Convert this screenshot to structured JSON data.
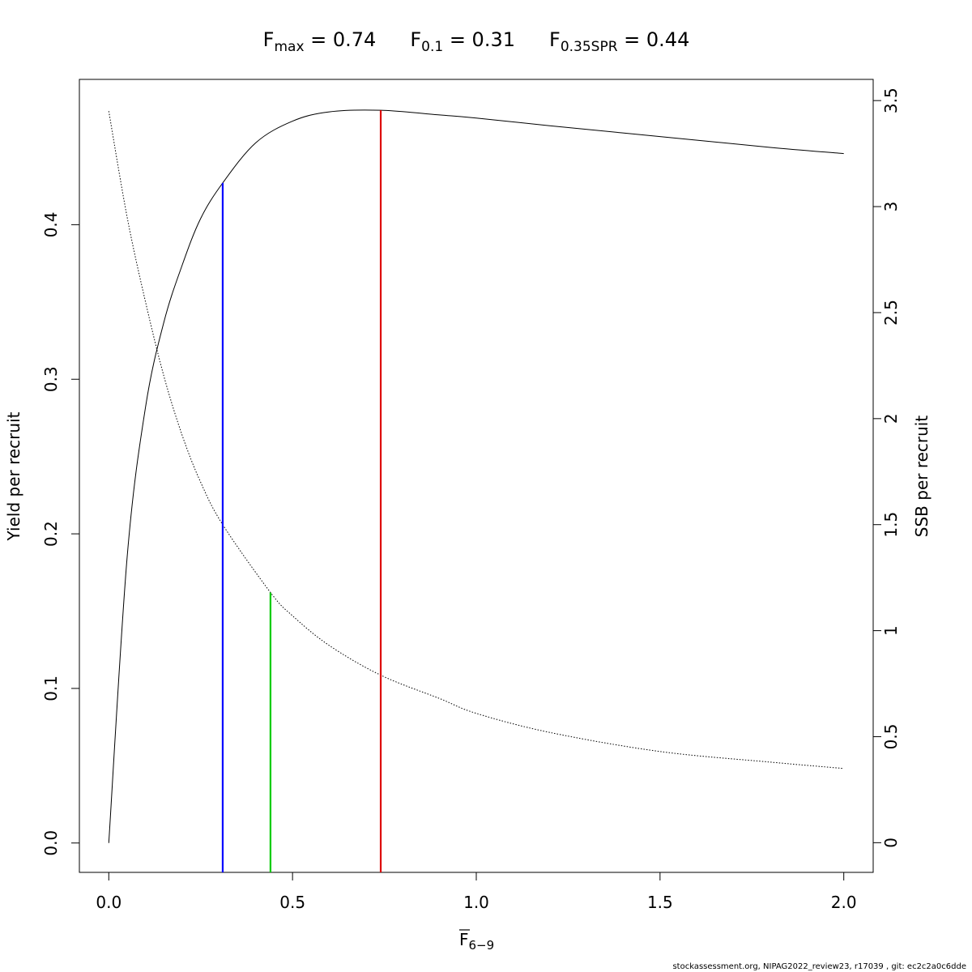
{
  "title": {
    "fmax": {
      "letter": "F",
      "sub": "max",
      "value": " = 0.74"
    },
    "f01": {
      "letter": "F",
      "sub": "0.1",
      "value": " = 0.31"
    },
    "f035spr": {
      "letter": "F",
      "sub": "0.35SPR",
      "value": " = 0.44"
    }
  },
  "footer": "stockassessment.org, NIPAG2022_review23, r17039 , git: ec2c2a0c6dde",
  "chart_data": {
    "type": "line",
    "xlabel": {
      "letter": "F",
      "sub": "6−9"
    },
    "ylabel_left": "Yield per recruit",
    "ylabel_right": "SSB per recruit",
    "xlim": [
      -0.08,
      2.08
    ],
    "ylim_left": [
      -0.019,
      0.494
    ],
    "ylim_right": [
      -0.14,
      3.6
    ],
    "x_ticks": [
      0.0,
      0.5,
      1.0,
      1.5,
      2.0
    ],
    "x_tick_labels": [
      "0.0",
      "0.5",
      "1.0",
      "1.5",
      "2.0"
    ],
    "y_left_ticks": [
      0.0,
      0.1,
      0.2,
      0.3,
      0.4
    ],
    "y_left_tick_labels": [
      "0.0",
      "0.1",
      "0.2",
      "0.3",
      "0.4"
    ],
    "y_right_ticks": [
      0,
      0.5,
      1,
      1.5,
      2,
      2.5,
      3,
      3.5
    ],
    "y_right_tick_labels": [
      "0",
      "0.5",
      "1",
      "1.5",
      "2",
      "2.5",
      "3",
      "3.5"
    ],
    "series": [
      {
        "line": "solid",
        "axis": "left",
        "color": "#000000",
        "x": [
          0.0,
          0.05,
          0.1,
          0.15,
          0.2,
          0.25,
          0.31,
          0.4,
          0.5,
          0.6,
          0.74,
          0.9,
          1.0,
          1.2,
          1.5,
          1.8,
          2.0
        ],
        "y": [
          0.0,
          0.185,
          0.282,
          0.337,
          0.374,
          0.404,
          0.427,
          0.453,
          0.467,
          0.473,
          0.474,
          0.471,
          0.469,
          0.464,
          0.457,
          0.45,
          0.446
        ]
      },
      {
        "line": "dotted",
        "axis": "right",
        "color": "#000000",
        "x": [
          0.0,
          0.05,
          0.1,
          0.15,
          0.2,
          0.25,
          0.31,
          0.44,
          0.5,
          0.6,
          0.74,
          0.9,
          1.0,
          1.2,
          1.5,
          1.8,
          2.0
        ],
        "y": [
          3.45,
          2.95,
          2.55,
          2.2,
          1.92,
          1.7,
          1.5,
          1.18,
          1.07,
          0.93,
          0.79,
          0.68,
          0.61,
          0.52,
          0.43,
          0.38,
          0.35
        ]
      }
    ],
    "reference_lines": [
      {
        "x": 0.31,
        "y_top": 0.427,
        "color": "#0000ff"
      },
      {
        "x": 0.44,
        "y_top": 0.162,
        "color": "#00cc00"
      },
      {
        "x": 0.74,
        "y_top": 0.474,
        "color": "#dd0000"
      }
    ]
  }
}
